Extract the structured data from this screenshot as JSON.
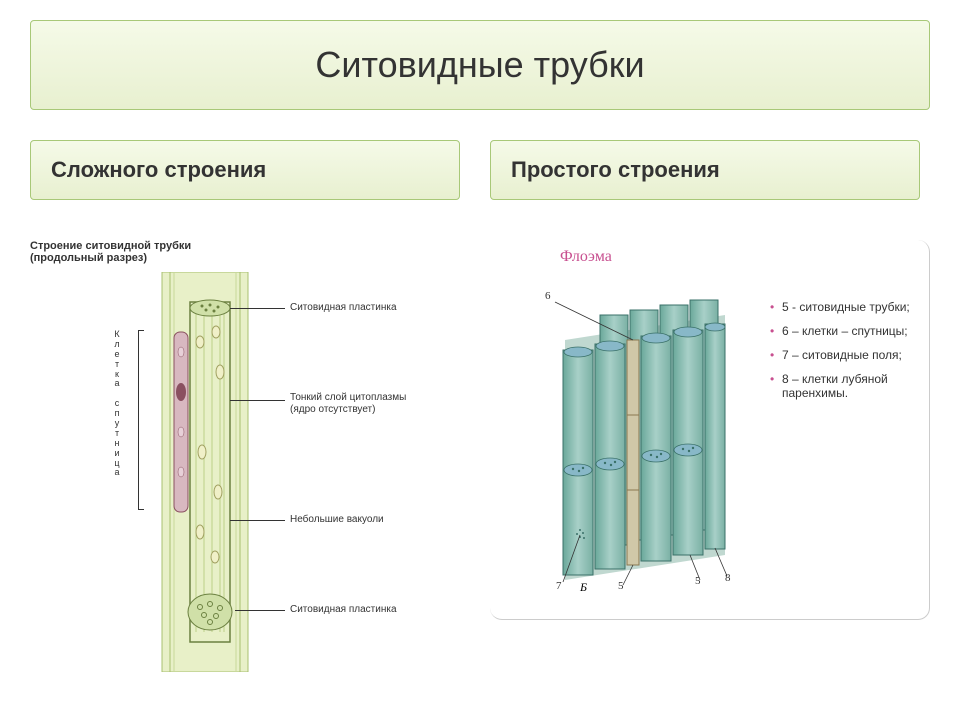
{
  "title": "Ситовидные трубки",
  "subtitles": {
    "left": "Сложного строения",
    "right": "Простого строения"
  },
  "left": {
    "heading": "Строение ситовидной трубки\n(продольный разрез)",
    "vertical_label": "Клетка спутница",
    "labels": {
      "plate_top": "Ситовидная пластинка",
      "cytoplasm": "Тонкий слой цитоплазмы\n(ядро отсутствует)",
      "vacuoles": "Небольшие вакуоли",
      "plate_bottom": "Ситовидная пластинка"
    },
    "colors": {
      "tube_outer": "#c8d89a",
      "tube_inner": "#e8f0c8",
      "companion_fill": "#d8b8c0",
      "nucleus": "#8a5060",
      "vacuole": "#f0f0c8",
      "vacuole_stroke": "#a0a060",
      "plate_fill": "#d0e0a8",
      "stroke": "#6b8040"
    }
  },
  "right": {
    "heading": "Флоэма",
    "heading_color": "#c85090",
    "legend": [
      "5 - ситовидные трубки;",
      "6 – клетки – спутницы;",
      "7 – ситовидные поля;",
      "8 – клетки лубяной паренхимы."
    ],
    "num_labels": {
      "n5": "5",
      "n6": "6",
      "n7": "7",
      "n8": "8",
      "b": "Б"
    },
    "colors": {
      "block_fill_a": "#8ac0b8",
      "block_fill_b": "#a8d0c8",
      "block_stroke": "#3a7068",
      "companion": "#d0c8a8",
      "companion_stroke": "#8a7850",
      "pore": "#5890a8",
      "leader": "#333333"
    }
  },
  "bullet_color": "#c85090"
}
